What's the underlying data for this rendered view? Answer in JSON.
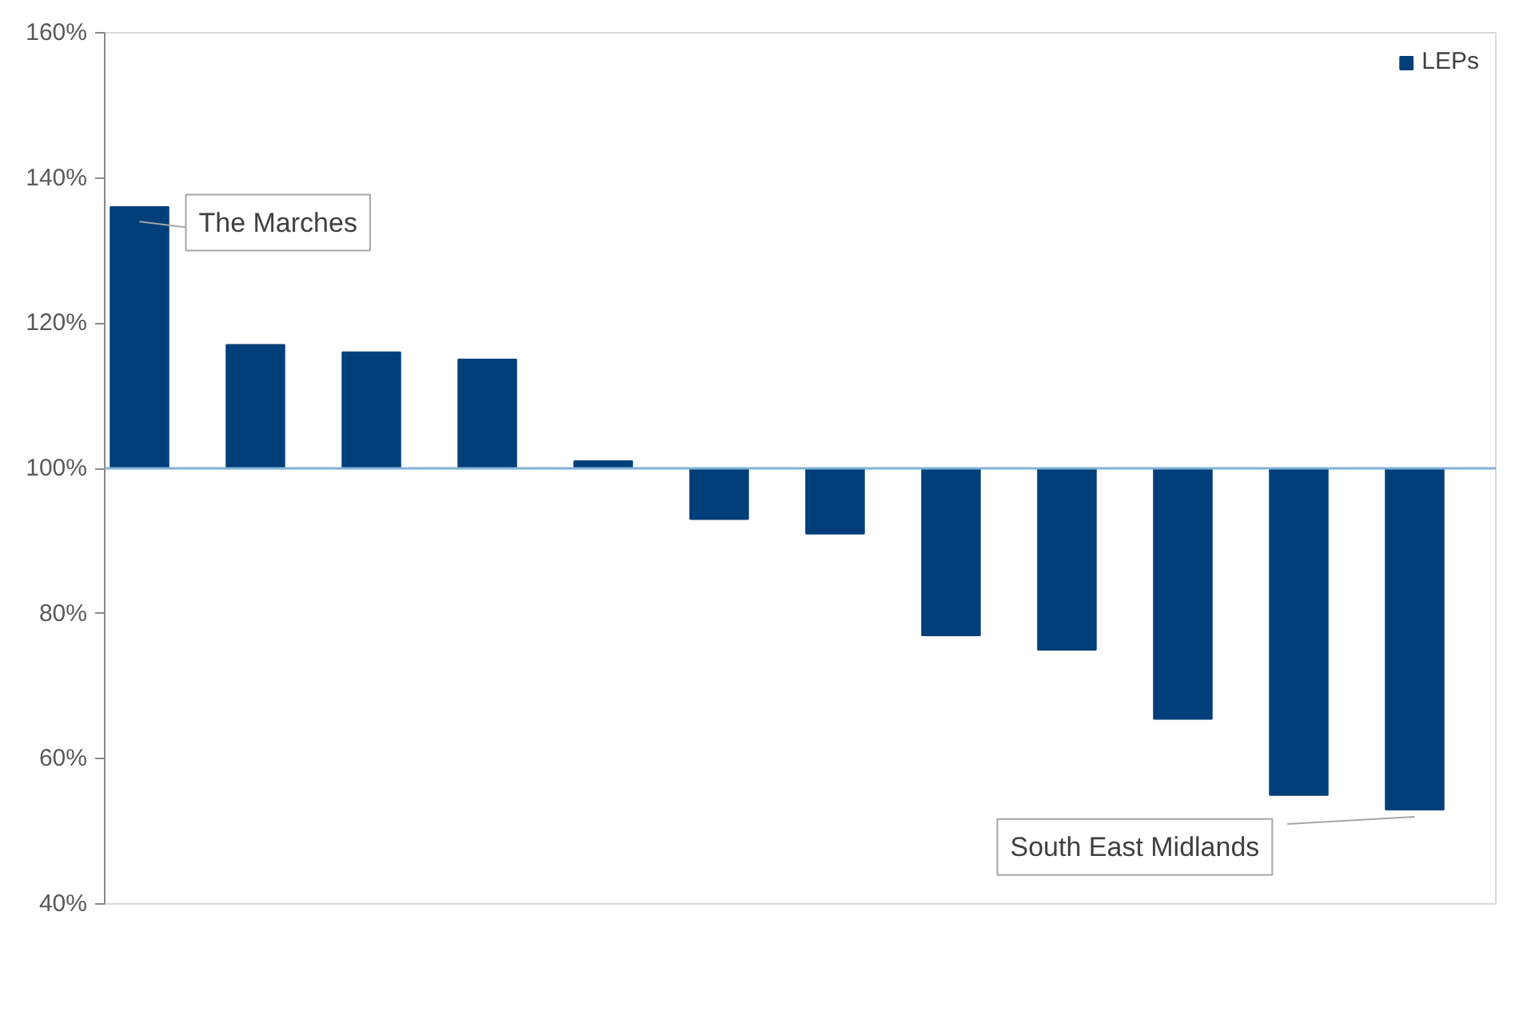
{
  "chart_data": {
    "type": "bar",
    "categories": [
      null,
      null,
      null,
      null,
      null,
      null,
      null,
      null,
      null,
      null,
      null,
      null
    ],
    "series": [
      {
        "name": "LEPs",
        "color": "#003f7a",
        "values": [
          36,
          17,
          16,
          15,
          1,
          -7,
          -9,
          -23,
          -25,
          -34.5,
          -45,
          -47
        ],
        "base": [
          100,
          100,
          100,
          100,
          100,
          100,
          100,
          100,
          100,
          100,
          100,
          100
        ]
      }
    ],
    "ylim": [
      40,
      160
    ],
    "yticks": [
      {
        "value": 40,
        "label": "40%"
      },
      {
        "value": 60,
        "label": "60%"
      },
      {
        "value": 80,
        "label": "80%"
      },
      {
        "value": 100,
        "label": "100%"
      },
      {
        "value": 120,
        "label": "120%"
      },
      {
        "value": 140,
        "label": "140%"
      },
      {
        "value": 160,
        "label": "160%"
      }
    ],
    "ref_lines": [
      {
        "axis": "y",
        "value": 100,
        "color": "#7fb2d6"
      }
    ],
    "annotations": [
      "The Marches",
      "South East Midlands"
    ],
    "legend": "top right",
    "grid": false
  }
}
